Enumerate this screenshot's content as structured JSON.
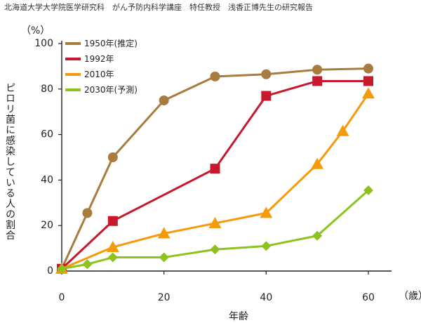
{
  "header": {
    "title": "北海道大学大学院医学研究科　がん予防内科学講座　特任教授　浅香正博先生の研究報告"
  },
  "chart_data": {
    "type": "line",
    "title": "",
    "xlabel": "年齢",
    "xunit": "（歳）",
    "ylabel": "ピロリ菌に感染している人の割合",
    "yunit": "（%）",
    "xlim": [
      0,
      60
    ],
    "ylim": [
      0,
      100
    ],
    "xticks": [
      0,
      20,
      40,
      60
    ],
    "yticks": [
      0,
      20,
      40,
      60,
      80,
      100
    ],
    "grid": false,
    "legend_position": "top-left",
    "series": [
      {
        "name": "1950年(推定)",
        "color": "#a87b3e",
        "marker": "circle",
        "points": [
          [
            0,
            1
          ],
          [
            5,
            25.5
          ],
          [
            10,
            50
          ],
          [
            20,
            75
          ],
          [
            30,
            85.5
          ],
          [
            40,
            86.5
          ],
          [
            50,
            88.5
          ],
          [
            60,
            89
          ]
        ]
      },
      {
        "name": "1992年",
        "color": "#c8182e",
        "marker": "square",
        "points": [
          [
            0,
            1
          ],
          [
            10,
            22
          ],
          [
            30,
            45
          ],
          [
            40,
            77
          ],
          [
            50,
            83.5
          ],
          [
            60,
            83.5
          ]
        ]
      },
      {
        "name": "2010年",
        "color": "#f59b0a",
        "marker": "triangle",
        "points": [
          [
            0,
            1
          ],
          [
            10,
            10.5
          ],
          [
            20,
            16.5
          ],
          [
            30,
            21
          ],
          [
            40,
            25.5
          ],
          [
            50,
            47
          ],
          [
            55,
            61.5
          ],
          [
            60,
            78
          ]
        ]
      },
      {
        "name": "2030年(予測)",
        "color": "#8dc21f",
        "marker": "diamond",
        "points": [
          [
            0,
            1
          ],
          [
            5,
            3
          ],
          [
            10,
            6
          ],
          [
            20,
            6
          ],
          [
            30,
            9.5
          ],
          [
            40,
            11
          ],
          [
            50,
            15.5
          ],
          [
            60,
            35.5
          ]
        ]
      }
    ]
  }
}
